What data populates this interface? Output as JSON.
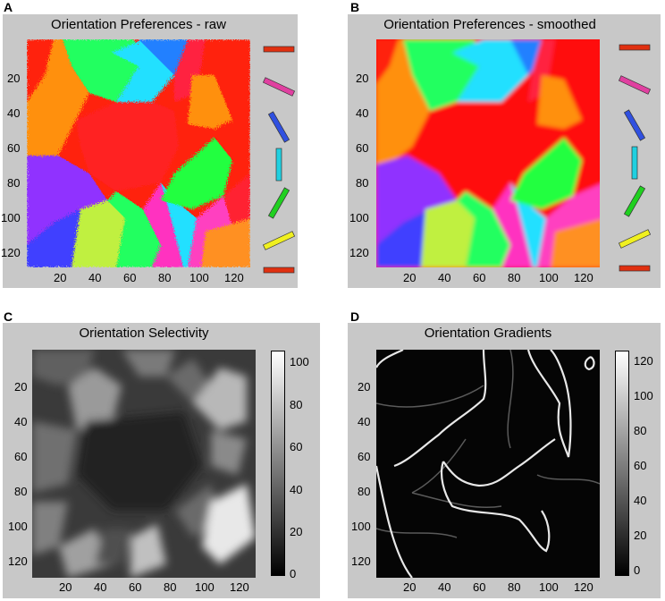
{
  "panels": {
    "A": {
      "letter": "A",
      "title": "Orientation Preferences - raw"
    },
    "B": {
      "letter": "B",
      "title": "Orientation Preferences - smoothed"
    },
    "C": {
      "letter": "C",
      "title": "Orientation Selectivity"
    },
    "D": {
      "letter": "D",
      "title": "Orientation Gradients"
    }
  },
  "chart_data": [
    {
      "type": "heatmap",
      "title": "Orientation Preferences - raw",
      "x_ticks": [
        "20",
        "40",
        "60",
        "80",
        "100",
        "120"
      ],
      "y_ticks": [
        "20",
        "40",
        "60",
        "80",
        "100",
        "120"
      ],
      "xlim": [
        1,
        128
      ],
      "ylim": [
        1,
        128
      ],
      "colormap": "hsv (orientation)",
      "legend_orientations_deg": [
        0,
        22.5,
        60,
        90,
        120,
        157.5,
        180
      ],
      "legend_colors": [
        "#e03010",
        "#e040a0",
        "#3050e0",
        "#20d0e0",
        "#20d020",
        "#f0f020",
        "#e03010"
      ]
    },
    {
      "type": "heatmap",
      "title": "Orientation Preferences - smoothed",
      "x_ticks": [
        "20",
        "40",
        "60",
        "80",
        "100",
        "120"
      ],
      "y_ticks": [
        "20",
        "40",
        "60",
        "80",
        "100",
        "120"
      ],
      "xlim": [
        1,
        128
      ],
      "ylim": [
        1,
        128
      ],
      "colormap": "hsv (orientation)",
      "legend_orientations_deg": [
        0,
        22.5,
        60,
        90,
        120,
        157.5,
        180
      ],
      "legend_colors": [
        "#e03010",
        "#e040a0",
        "#3050e0",
        "#20d0e0",
        "#20d020",
        "#f0f020",
        "#e03010"
      ]
    },
    {
      "type": "heatmap",
      "title": "Orientation Selectivity",
      "x_ticks": [
        "20",
        "40",
        "60",
        "80",
        "100",
        "120"
      ],
      "y_ticks": [
        "20",
        "40",
        "60",
        "80",
        "100",
        "120"
      ],
      "xlim": [
        1,
        128
      ],
      "ylim": [
        1,
        128
      ],
      "colormap": "gray",
      "colorbar_ticks": [
        "0",
        "20",
        "40",
        "60",
        "80",
        "100"
      ],
      "clim": [
        0,
        105
      ]
    },
    {
      "type": "heatmap",
      "title": "Orientation Gradients",
      "x_ticks": [
        "20",
        "40",
        "60",
        "80",
        "100",
        "120"
      ],
      "y_ticks": [
        "20",
        "40",
        "60",
        "80",
        "100",
        "120"
      ],
      "xlim": [
        1,
        128
      ],
      "ylim": [
        1,
        128
      ],
      "colormap": "gray",
      "colorbar_ticks": [
        "0",
        "20",
        "40",
        "60",
        "80",
        "100",
        "120"
      ],
      "clim": [
        0,
        128
      ]
    }
  ]
}
